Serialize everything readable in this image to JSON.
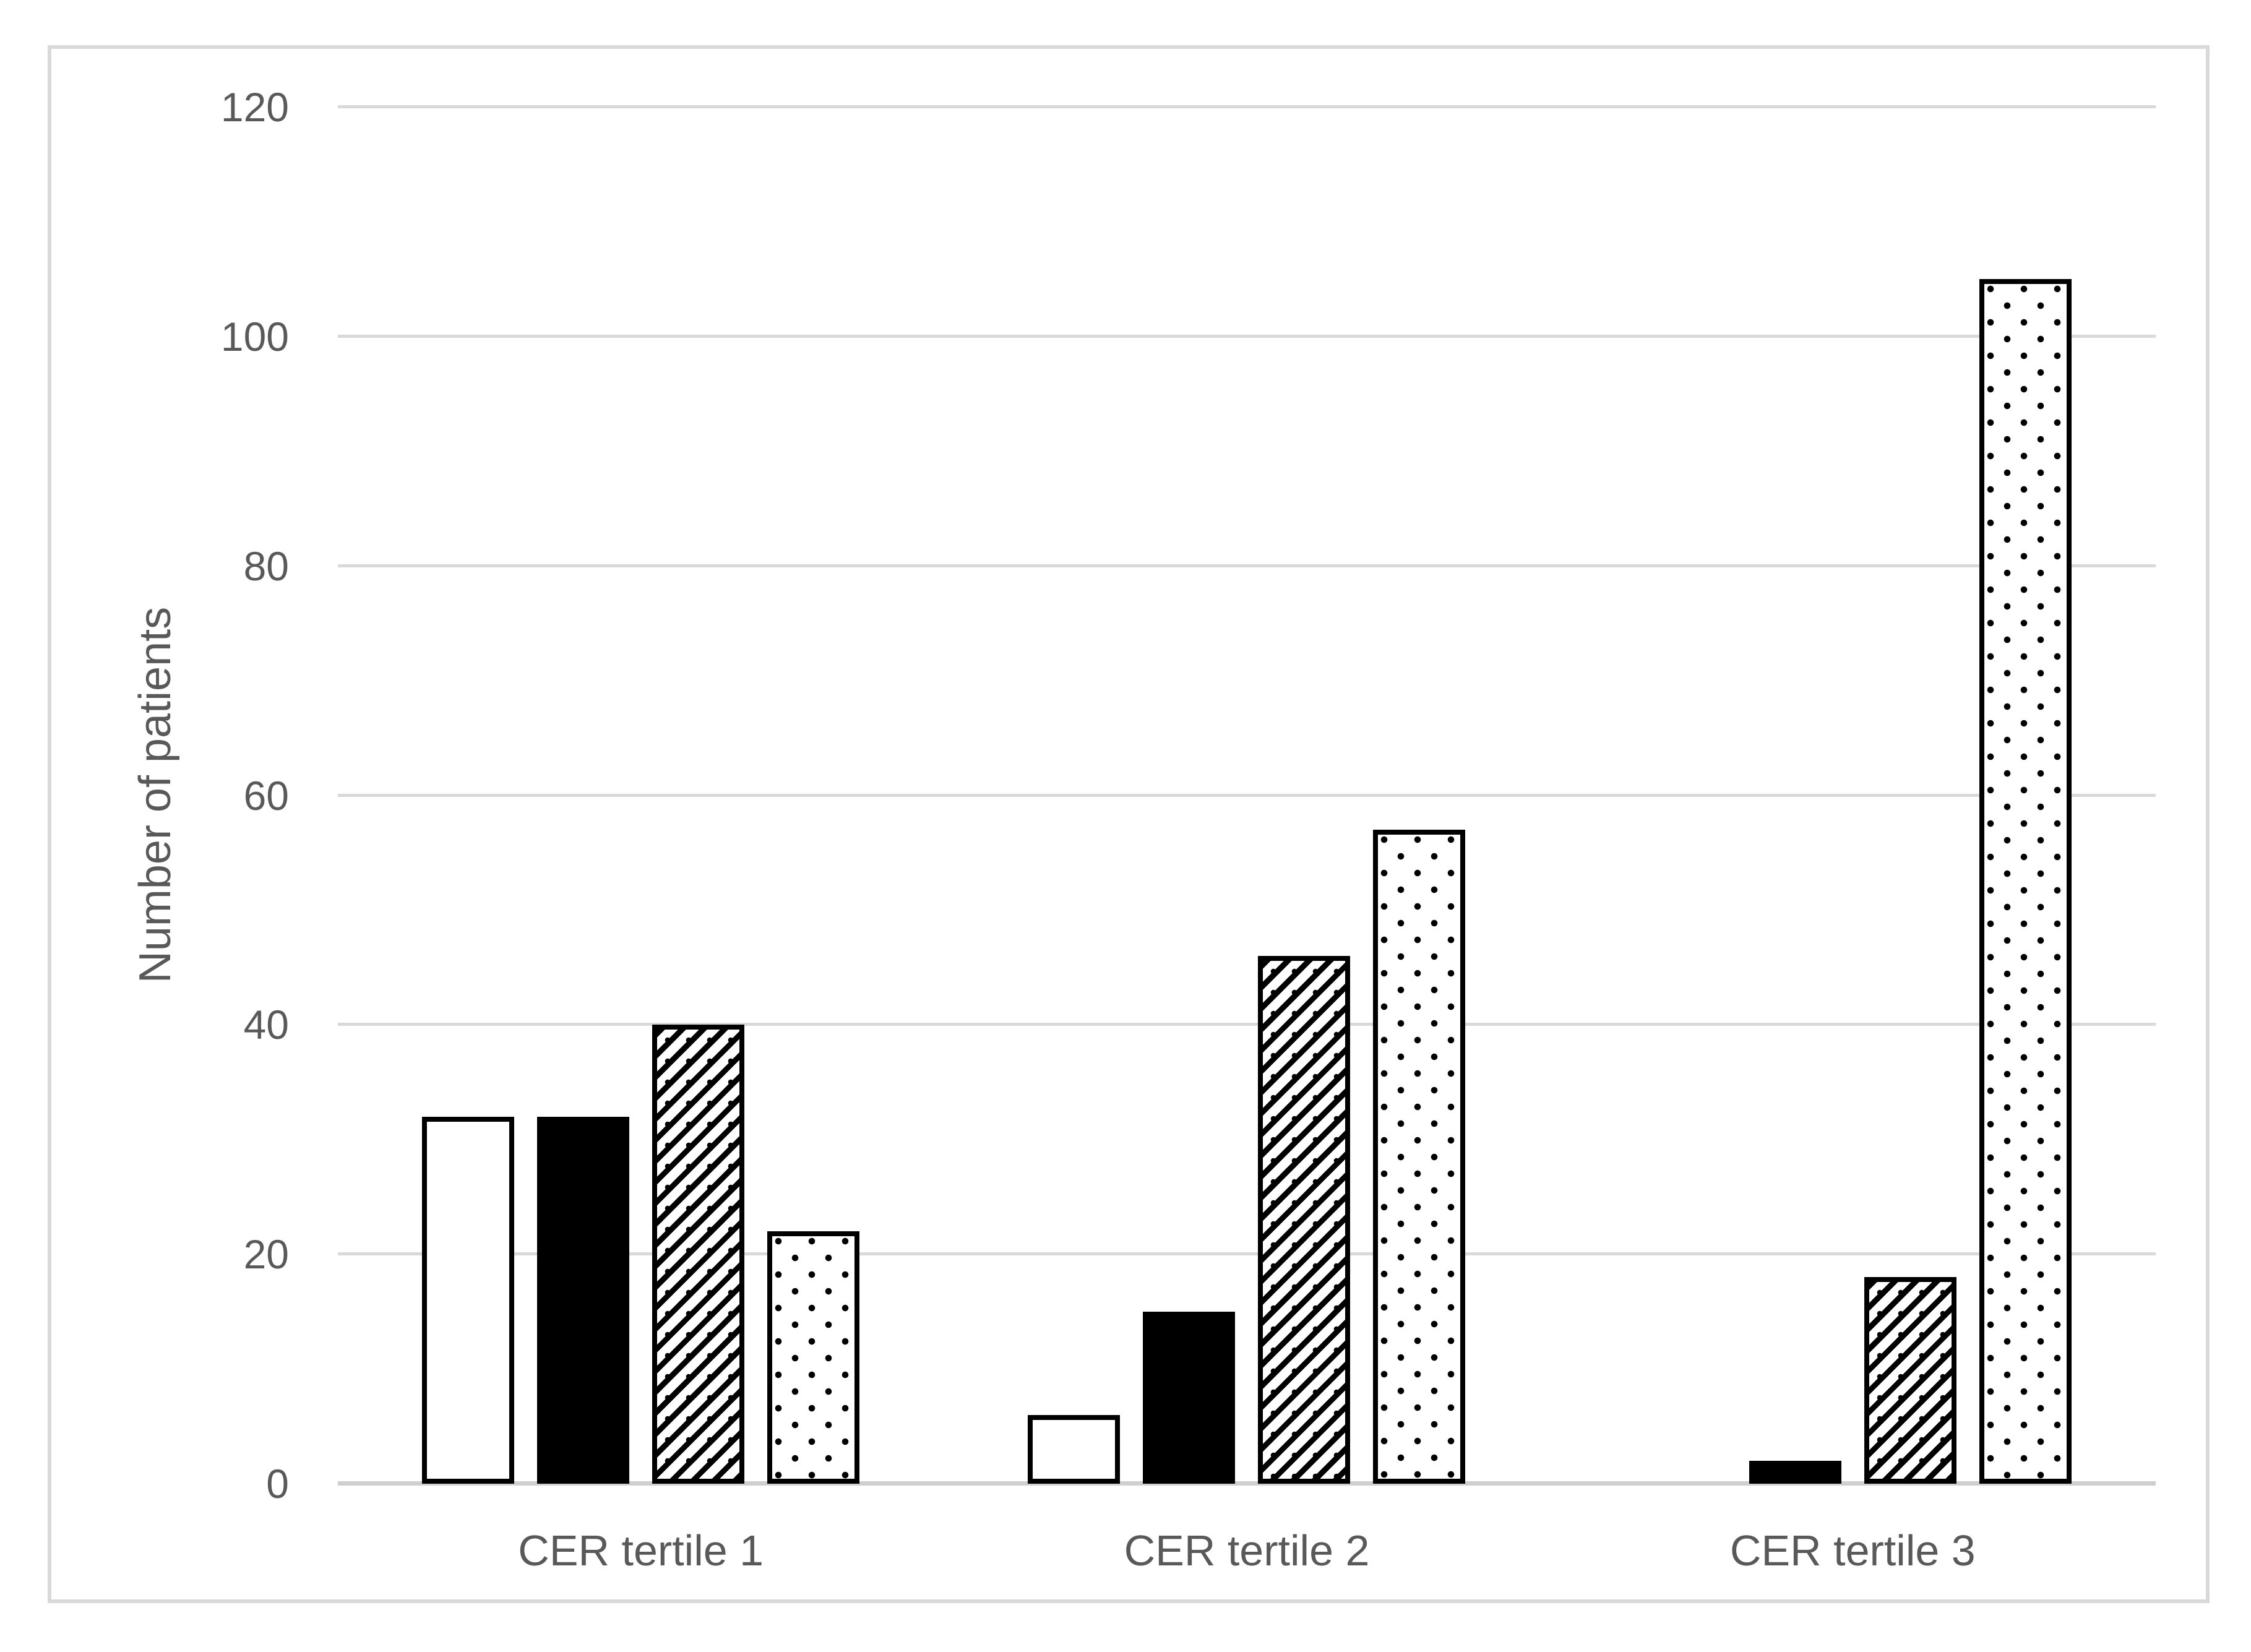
{
  "figure": {
    "background": "#ffffff",
    "frame_border_color": "#d9d9d9"
  },
  "colors": {
    "text": "#595959",
    "gridline": "#d9d9d9",
    "axis_line": "#cfcfcf",
    "bar_outline": "#000000",
    "bar_fill_white": "#ffffff",
    "bar_fill_black": "#000000"
  },
  "chart_data": {
    "type": "bar",
    "title": "",
    "xlabel": "",
    "ylabel": "Number of patients",
    "categories": [
      "CER tertile 1",
      "CER tertile 2",
      "CER tertile 3"
    ],
    "series": [
      {
        "name": "white-outline-bar",
        "pattern": "plain",
        "values": [
          32,
          6,
          0
        ]
      },
      {
        "name": "solid-black-bar",
        "pattern": "solid",
        "values": [
          32,
          15,
          2
        ]
      },
      {
        "name": "diagonal-hatch-bar",
        "pattern": "hatch",
        "values": [
          40,
          46,
          18
        ]
      },
      {
        "name": "dotted-bar",
        "pattern": "dots",
        "values": [
          22,
          57,
          105
        ]
      }
    ],
    "ylim": [
      0,
      120
    ],
    "yticks": [
      0,
      20,
      40,
      60,
      80,
      100,
      120
    ],
    "grid": true,
    "legend": "none"
  }
}
